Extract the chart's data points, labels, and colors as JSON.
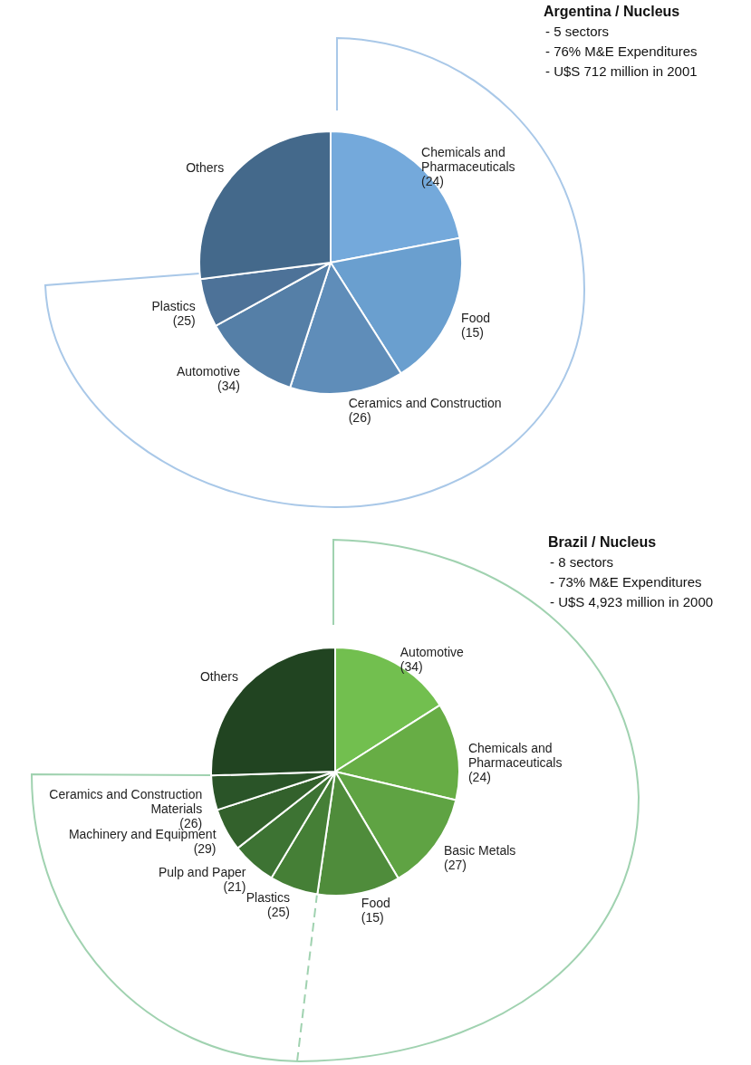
{
  "chart_data": [
    {
      "type": "pie",
      "title": "Argentina / Nucleus",
      "annotations": [
        "- 5 sectors",
        "- 76% M&E Expenditures",
        "- U$S 712 million in 2001"
      ],
      "categories": [
        "Chemicals and Pharmaceuticals (24)",
        "Food (15)",
        "Ceramics and Construction (26)",
        "Automotive (34)",
        "Plastics (25)",
        "Others"
      ],
      "values": [
        22,
        19,
        14,
        12,
        6,
        27
      ],
      "colors": [
        "#74a9db",
        "#6a9fcf",
        "#5f8db9",
        "#557fa7",
        "#4d7298",
        "#44698b"
      ]
    },
    {
      "type": "pie",
      "title": "Brazil / Nucleus",
      "annotations": [
        "- 8 sectors",
        "- 73% M&E Expenditures",
        "- U$S 4,923 million in 2000"
      ],
      "categories": [
        "Automotive (34)",
        "Chemicals and Pharmaceuticals (24)",
        "Basic Metals (27)",
        "Food (15)",
        "Plastics (25)",
        "Pulp and Paper (21)",
        "Machinery and Equipment (29)",
        "Ceramics and Construction Materials (26)",
        "Others"
      ],
      "values": [
        16,
        12.7,
        12.8,
        10.8,
        6.3,
        5.8,
        5.6,
        4.5,
        25.5
      ],
      "colors": [
        "#72bf4f",
        "#67ad45",
        "#5fa343",
        "#4f8c3b",
        "#457f36",
        "#3d7333",
        "#33612c",
        "#2a5428",
        "#214421"
      ]
    }
  ]
}
